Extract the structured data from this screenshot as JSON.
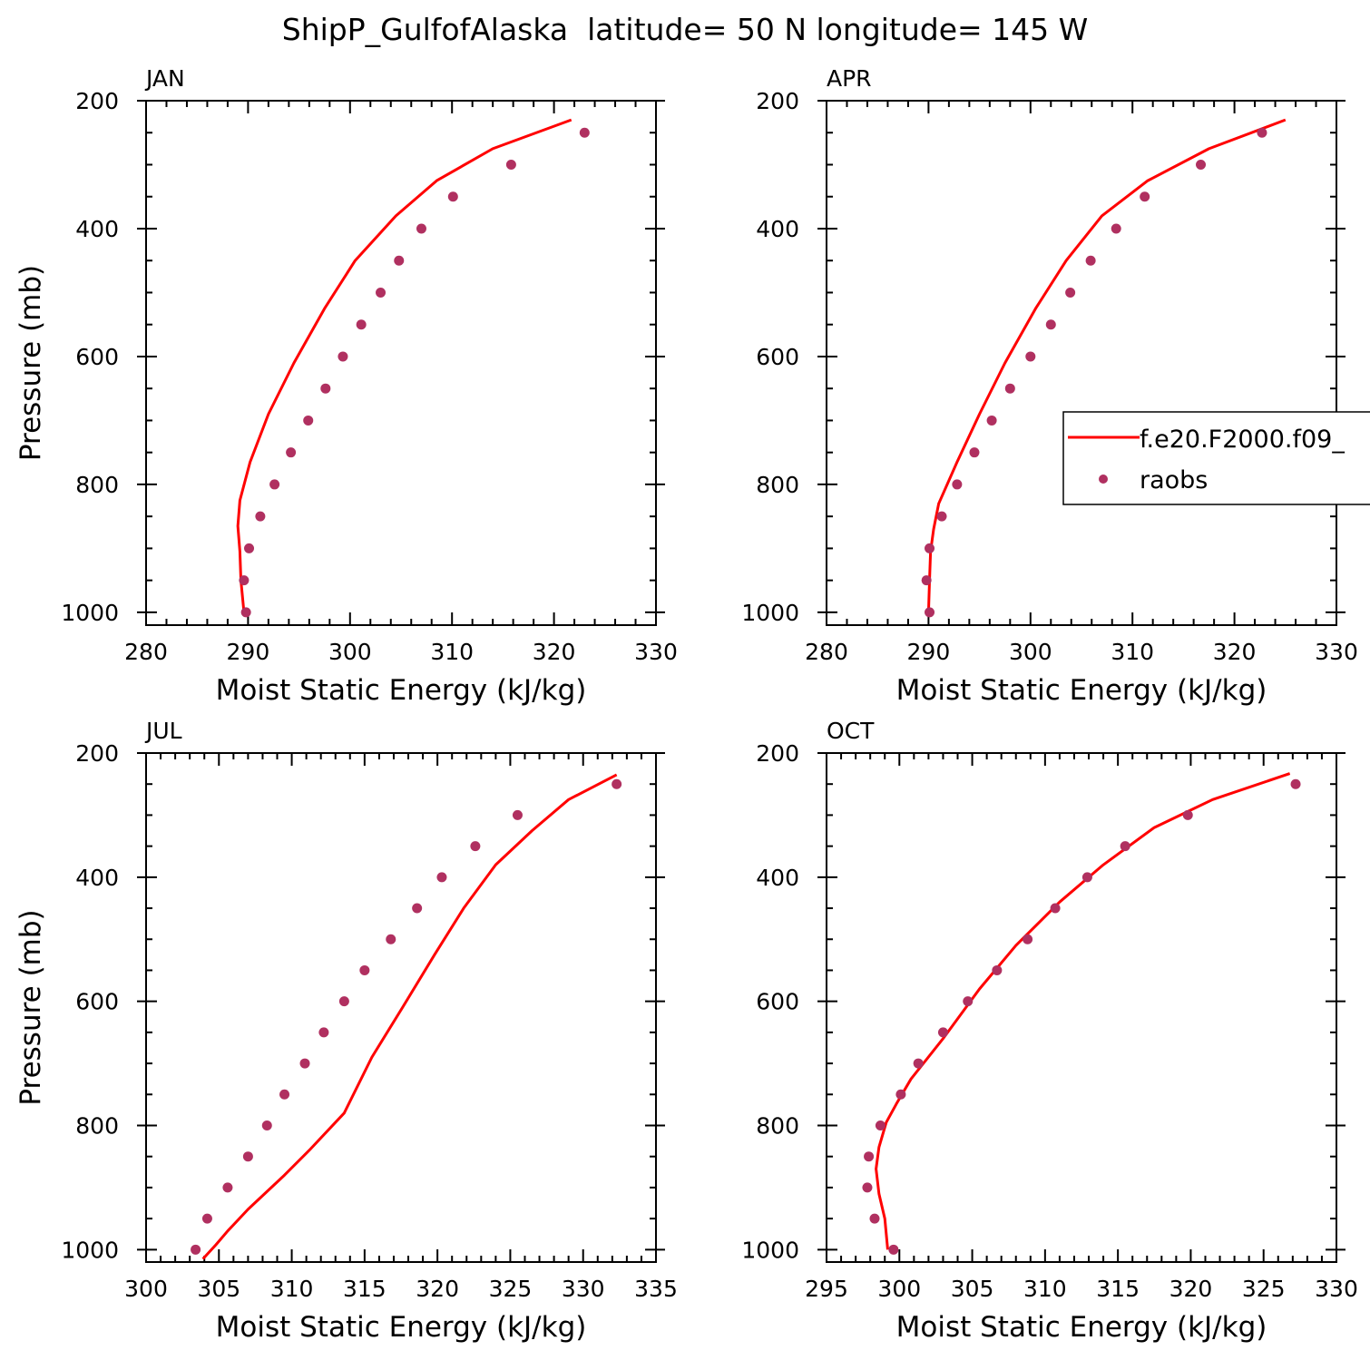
{
  "figure": {
    "title": "ShipP_GulfofAlaska  latitude= 50 N longitude= 145 W"
  },
  "legend": {
    "model_label": "f.e20.F2000.f09_",
    "obs_label": "raobs"
  },
  "colors": {
    "model": "#ff0000",
    "obs": "#b03060",
    "axis": "#000000"
  },
  "chart_data": [
    {
      "type": "line",
      "panel": "JAN",
      "xlabel": "Moist Static Energy (kJ/kg)",
      "ylabel": "Pressure (mb)",
      "xlim": [
        280,
        330
      ],
      "xticks": [
        280,
        290,
        300,
        310,
        320,
        330
      ],
      "ylim": [
        1020,
        200
      ],
      "yticks": [
        200,
        400,
        600,
        800,
        1000
      ],
      "series": [
        {
          "name": "f.e20.F2000.f09_",
          "style": "line",
          "points": [
            [
              321.7,
              230
            ],
            [
              314,
              275
            ],
            [
              308.5,
              325
            ],
            [
              304.5,
              380
            ],
            [
              300.5,
              450
            ],
            [
              297.5,
              525
            ],
            [
              294.5,
              610
            ],
            [
              292,
              690
            ],
            [
              290.2,
              765
            ],
            [
              289.2,
              825
            ],
            [
              289,
              865
            ],
            [
              289.2,
              905
            ],
            [
              289.3,
              950
            ],
            [
              289.6,
              1000
            ]
          ]
        },
        {
          "name": "raobs",
          "style": "marker",
          "points": [
            [
              323,
              250
            ],
            [
              315.8,
              300
            ],
            [
              310.1,
              350
            ],
            [
              307,
              400
            ],
            [
              304.8,
              450
            ],
            [
              303,
              500
            ],
            [
              301.1,
              550
            ],
            [
              299.3,
              600
            ],
            [
              297.6,
              650
            ],
            [
              295.9,
              700
            ],
            [
              294.2,
              750
            ],
            [
              292.6,
              800
            ],
            [
              291.2,
              850
            ],
            [
              290.1,
              900
            ],
            [
              289.6,
              950
            ],
            [
              289.8,
              1000
            ]
          ]
        }
      ]
    },
    {
      "type": "line",
      "panel": "APR",
      "xlabel": "Moist Static Energy (kJ/kg)",
      "ylabel": "",
      "xlim": [
        280,
        330
      ],
      "xticks": [
        280,
        290,
        300,
        310,
        320,
        330
      ],
      "ylim": [
        1020,
        200
      ],
      "yticks": [
        200,
        400,
        600,
        800,
        1000
      ],
      "series": [
        {
          "name": "f.e20.F2000.f09_",
          "style": "line",
          "points": [
            [
              325,
              230
            ],
            [
              317.5,
              275
            ],
            [
              311.5,
              325
            ],
            [
              307,
              380
            ],
            [
              303.5,
              450
            ],
            [
              300.5,
              525
            ],
            [
              297.5,
              610
            ],
            [
              295,
              690
            ],
            [
              292.8,
              765
            ],
            [
              291,
              830
            ],
            [
              290.5,
              870
            ],
            [
              290.2,
              905
            ],
            [
              290.1,
              950
            ],
            [
              290,
              1000
            ]
          ]
        },
        {
          "name": "raobs",
          "style": "marker",
          "points": [
            [
              322.7,
              250
            ],
            [
              316.7,
              300
            ],
            [
              311.2,
              350
            ],
            [
              308.4,
              400
            ],
            [
              305.9,
              450
            ],
            [
              303.9,
              500
            ],
            [
              302,
              550
            ],
            [
              300,
              600
            ],
            [
              298,
              650
            ],
            [
              296.2,
              700
            ],
            [
              294.5,
              750
            ],
            [
              292.8,
              800
            ],
            [
              291.3,
              850
            ],
            [
              290.1,
              900
            ],
            [
              289.8,
              950
            ],
            [
              290.1,
              1000
            ]
          ]
        }
      ]
    },
    {
      "type": "line",
      "panel": "JUL",
      "xlabel": "Moist Static Energy (kJ/kg)",
      "ylabel": "Pressure (mb)",
      "xlim": [
        300,
        335
      ],
      "xticks": [
        300,
        305,
        310,
        315,
        320,
        325,
        330,
        335
      ],
      "ylim": [
        1020,
        200
      ],
      "yticks": [
        200,
        400,
        600,
        800,
        1000
      ],
      "series": [
        {
          "name": "f.e20.F2000.f09_",
          "style": "line",
          "points": [
            [
              332.3,
              235
            ],
            [
              329,
              275
            ],
            [
              326.5,
              325
            ],
            [
              324,
              380
            ],
            [
              321.8,
              450
            ],
            [
              319.8,
              525
            ],
            [
              317.6,
              610
            ],
            [
              315.5,
              690
            ],
            [
              313.6,
              780
            ],
            [
              311.2,
              840
            ],
            [
              309.5,
              880
            ],
            [
              307,
              935
            ],
            [
              305.6,
              970
            ],
            [
              304.8,
              992
            ],
            [
              303.9,
              1015
            ]
          ]
        },
        {
          "name": "raobs",
          "style": "marker",
          "points": [
            [
              332.3,
              250
            ],
            [
              325.5,
              300
            ],
            [
              322.6,
              350
            ],
            [
              320.3,
              400
            ],
            [
              318.6,
              450
            ],
            [
              316.8,
              500
            ],
            [
              315,
              550
            ],
            [
              313.6,
              600
            ],
            [
              312.2,
              650
            ],
            [
              310.9,
              700
            ],
            [
              309.5,
              750
            ],
            [
              308.3,
              800
            ],
            [
              307,
              850
            ],
            [
              305.6,
              900
            ],
            [
              304.2,
              950
            ],
            [
              303.4,
              1000
            ]
          ]
        }
      ]
    },
    {
      "type": "line",
      "panel": "OCT",
      "xlabel": "Moist Static Energy (kJ/kg)",
      "ylabel": "",
      "xlim": [
        295,
        330
      ],
      "xticks": [
        295,
        300,
        305,
        310,
        315,
        320,
        325,
        330
      ],
      "ylim": [
        1020,
        200
      ],
      "yticks": [
        200,
        400,
        600,
        800,
        1000
      ],
      "series": [
        {
          "name": "f.e20.F2000.f09_",
          "style": "line",
          "points": [
            [
              326.8,
              233
            ],
            [
              321.5,
              275
            ],
            [
              317.5,
              320
            ],
            [
              314,
              380
            ],
            [
              311,
              440
            ],
            [
              308,
              510
            ],
            [
              305.5,
              580
            ],
            [
              303,
              660
            ],
            [
              300.8,
              725
            ],
            [
              299.8,
              765
            ],
            [
              299.1,
              795
            ],
            [
              298.6,
              835
            ],
            [
              298.4,
              870
            ],
            [
              298.6,
              910
            ],
            [
              299,
              950
            ],
            [
              299.2,
              1000
            ]
          ]
        },
        {
          "name": "raobs",
          "style": "marker",
          "points": [
            [
              327.2,
              250
            ],
            [
              319.8,
              300
            ],
            [
              315.5,
              350
            ],
            [
              312.9,
              400
            ],
            [
              310.7,
              450
            ],
            [
              308.8,
              500
            ],
            [
              306.7,
              550
            ],
            [
              304.7,
              600
            ],
            [
              303,
              650
            ],
            [
              301.3,
              700
            ],
            [
              300.1,
              750
            ],
            [
              298.7,
              800
            ],
            [
              297.9,
              850
            ],
            [
              297.8,
              900
            ],
            [
              298.3,
              950
            ],
            [
              299.6,
              1000
            ]
          ]
        }
      ]
    }
  ]
}
